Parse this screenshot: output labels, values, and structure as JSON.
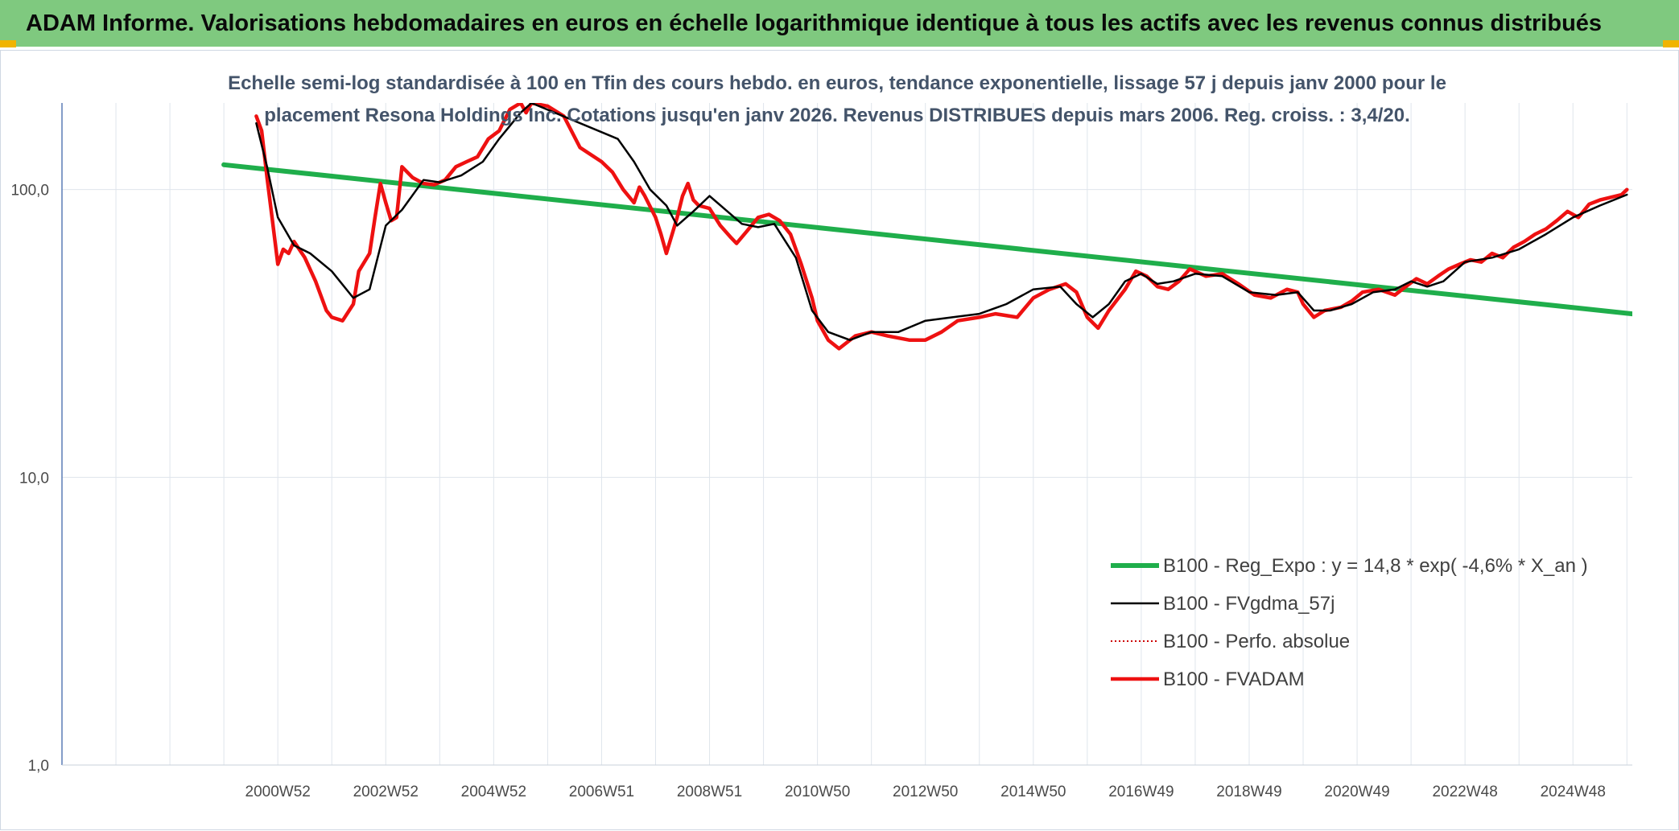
{
  "banner": {
    "title": "ADAM Informe. Valorisations hebdomadaires en euros en échelle logarithmique identique à tous les actifs avec les revenus connus distribués"
  },
  "colors": {
    "banner_bg": "#7fc97f",
    "reg_expo": "#1fae4b",
    "fvgdma": "#000000",
    "perfo_absolue": "#cc0000",
    "fvadam": "#ee1111",
    "grid": "#dfe5ec",
    "axis_text": "#4a4a4a"
  },
  "chart_data": {
    "type": "line",
    "subtitle_line1": "Echelle semi-log standardisée à 100 en Tfin des cours hebdo. en euros, tendance exponentielle, lissage 57 j depuis janv 2000 pour le",
    "subtitle_line2": "placement Resona Holdings Inc. Cotations jusqu'en janv 2026. Revenus DISTRIBUES depuis mars 2006. Reg. croiss. : 3,4/20.",
    "y_scale": "log",
    "ylim": [
      1,
      200
    ],
    "xlim": [
      1997,
      2026.1
    ],
    "y_ticks": [
      {
        "value": 1,
        "label": "1,0"
      },
      {
        "value": 10,
        "label": "10,0"
      },
      {
        "value": 100,
        "label": "100,0"
      }
    ],
    "x_ticks": [
      {
        "value": 2001.0,
        "label": "2000W52"
      },
      {
        "value": 2003.0,
        "label": "2002W52"
      },
      {
        "value": 2005.0,
        "label": "2004W52"
      },
      {
        "value": 2007.0,
        "label": "2006W51"
      },
      {
        "value": 2009.0,
        "label": "2008W51"
      },
      {
        "value": 2011.0,
        "label": "2010W50"
      },
      {
        "value": 2013.0,
        "label": "2012W50"
      },
      {
        "value": 2015.0,
        "label": "2014W50"
      },
      {
        "value": 2017.0,
        "label": "2016W49"
      },
      {
        "value": 2019.0,
        "label": "2018W49"
      },
      {
        "value": 2021.0,
        "label": "2020W49"
      },
      {
        "value": 2023.0,
        "label": "2022W48"
      },
      {
        "value": 2025.0,
        "label": "2024W48"
      }
    ],
    "gridlines_x": [
      1997,
      1998,
      1999,
      2000,
      2001,
      2002,
      2003,
      2004,
      2005,
      2006,
      2007,
      2008,
      2009,
      2010,
      2011,
      2012,
      2013,
      2014,
      2015,
      2016,
      2017,
      2018,
      2019,
      2020,
      2021,
      2022,
      2023,
      2024,
      2025,
      2026
    ],
    "legend_position": "bottom-right",
    "series": [
      {
        "key": "reg_expo",
        "name": "B100 - Reg_Expo : y = 14,8 * exp( -4,6% *  X_an )",
        "style": "thick",
        "x": [
          2000.0,
          2026.1
        ],
        "y": [
          122,
          37
        ]
      },
      {
        "key": "fvgdma",
        "name": "B100 - FVgdma_57j",
        "style": "thin",
        "x": [
          2000.6,
          2000.8,
          2001.0,
          2001.3,
          2001.6,
          2002.0,
          2002.4,
          2002.7,
          2003.0,
          2003.3,
          2003.7,
          2004.0,
          2004.4,
          2004.8,
          2005.1,
          2005.5,
          2005.7,
          2007.3,
          2007.6,
          2007.9,
          2008.2,
          2008.4,
          2008.7,
          2009.0,
          2009.3,
          2009.6,
          2009.9,
          2010.2,
          2010.6,
          2010.9,
          2011.2,
          2011.6,
          2012.0,
          2012.5,
          2013.0,
          2013.5,
          2014.0,
          2014.5,
          2015.0,
          2015.5,
          2015.8,
          2016.1,
          2016.4,
          2016.7,
          2017.0,
          2017.3,
          2017.6,
          2018.0,
          2018.5,
          2019.0,
          2019.5,
          2019.9,
          2020.2,
          2020.5,
          2020.9,
          2021.3,
          2021.7,
          2022.0,
          2022.3,
          2022.6,
          2023.0,
          2023.5,
          2024.0,
          2024.5,
          2025.0,
          2025.5,
          2026.0
        ],
        "y": [
          170,
          120,
          80,
          64,
          60,
          52,
          42,
          45,
          75,
          85,
          108,
          106,
          112,
          125,
          150,
          185,
          200,
          150,
          125,
          100,
          88,
          75,
          84,
          95,
          85,
          76,
          74,
          76,
          58,
          38,
          32,
          30,
          32,
          32,
          35,
          36,
          37,
          40,
          45,
          46,
          40,
          36,
          40,
          48,
          51,
          47,
          48,
          51,
          50,
          44,
          43,
          44,
          38,
          38,
          40,
          44,
          45,
          48,
          46,
          48,
          56,
          58,
          62,
          70,
          80,
          88,
          96
        ]
      },
      {
        "key": "perfo_absolue",
        "name": "B100 - Perfo. absolue",
        "style": "dotted",
        "x": [],
        "y": []
      },
      {
        "key": "fvadam",
        "name": "B100 - FVADAM",
        "style": "thick",
        "x": [
          2000.6,
          2000.7,
          2000.8,
          2000.9,
          2001.0,
          2001.1,
          2001.2,
          2001.3,
          2001.5,
          2001.7,
          2001.9,
          2002.0,
          2002.2,
          2002.4,
          2002.5,
          2002.7,
          2002.8,
          2002.9,
          2003.0,
          2003.1,
          2003.2,
          2003.3,
          2003.5,
          2003.7,
          2003.9,
          2004.1,
          2004.3,
          2004.5,
          2004.7,
          2004.9,
          2005.1,
          2005.3,
          2005.5,
          2005.6,
          2005.7,
          2006.0,
          2006.3,
          2006.6,
          2007.0,
          2007.2,
          2007.4,
          2007.6,
          2007.7,
          2007.8,
          2008.0,
          2008.1,
          2008.2,
          2008.4,
          2008.5,
          2008.6,
          2008.7,
          2008.8,
          2009.0,
          2009.2,
          2009.4,
          2009.5,
          2009.7,
          2009.9,
          2010.1,
          2010.3,
          2010.5,
          2010.7,
          2010.9,
          2011.0,
          2011.2,
          2011.4,
          2011.7,
          2012.0,
          2012.3,
          2012.7,
          2013.0,
          2013.3,
          2013.6,
          2014.0,
          2014.3,
          2014.7,
          2015.0,
          2015.3,
          2015.6,
          2015.8,
          2016.0,
          2016.2,
          2016.4,
          2016.7,
          2016.9,
          2017.1,
          2017.3,
          2017.5,
          2017.7,
          2017.9,
          2018.2,
          2018.5,
          2018.8,
          2019.1,
          2019.4,
          2019.7,
          2019.9,
          2020.0,
          2020.2,
          2020.4,
          2020.7,
          2020.9,
          2021.1,
          2021.4,
          2021.7,
          2021.9,
          2022.1,
          2022.3,
          2022.5,
          2022.7,
          2022.9,
          2023.1,
          2023.3,
          2023.5,
          2023.7,
          2023.9,
          2024.1,
          2024.3,
          2024.5,
          2024.7,
          2024.9,
          2025.1,
          2025.3,
          2025.5,
          2025.7,
          2025.9,
          2026.0
        ],
        "y": [
          180,
          160,
          110,
          78,
          55,
          62,
          60,
          66,
          58,
          48,
          38,
          36,
          35,
          40,
          52,
          60,
          80,
          105,
          90,
          78,
          80,
          120,
          110,
          105,
          104,
          108,
          120,
          125,
          130,
          150,
          160,
          190,
          200,
          185,
          200,
          195,
          180,
          140,
          125,
          115,
          100,
          90,
          102,
          95,
          80,
          70,
          60,
          80,
          95,
          105,
          92,
          88,
          86,
          75,
          68,
          65,
          72,
          80,
          82,
          78,
          70,
          55,
          42,
          35,
          30,
          28,
          31,
          32,
          31,
          30,
          30,
          32,
          35,
          36,
          37,
          36,
          42,
          45,
          47,
          44,
          36,
          33,
          38,
          45,
          52,
          50,
          46,
          45,
          48,
          53,
          50,
          51,
          47,
          43,
          42,
          45,
          44,
          40,
          36,
          38,
          39,
          41,
          44,
          45,
          43,
          46,
          49,
          47,
          50,
          53,
          55,
          57,
          56,
          60,
          58,
          63,
          66,
          70,
          73,
          78,
          84,
          80,
          89,
          92,
          94,
          96,
          100
        ]
      }
    ]
  }
}
